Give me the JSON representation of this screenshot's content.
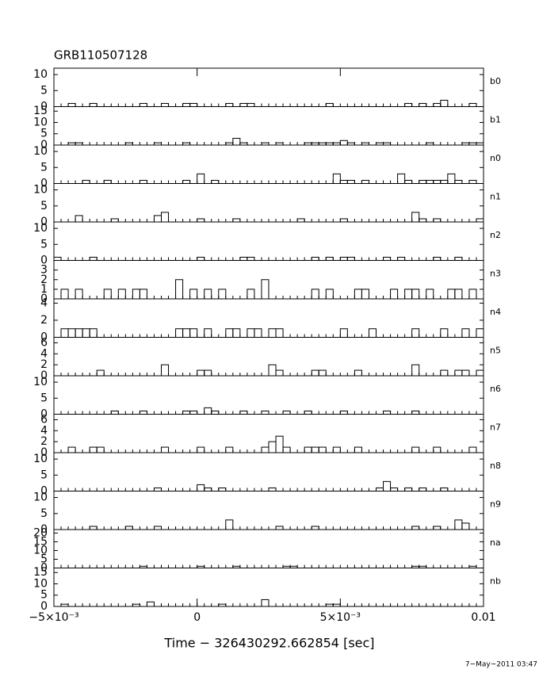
{
  "chart_data": {
    "type": "histogram",
    "title": "GRB110507128",
    "xlabel": "Time − 326430292.662854 [sec]",
    "footer": "7−May−2011 03:47",
    "xlim": [
      -0.005,
      0.01
    ],
    "xticks": [
      {
        "value": -0.005,
        "label": "−5×10⁻³"
      },
      0,
      {
        "value": 0.005,
        "label": "5×10⁻³"
      },
      0.01
    ],
    "bins": [
      -0.005,
      -0.00475,
      -0.0045,
      -0.00425,
      -0.004,
      -0.00375,
      -0.0035,
      -0.00325,
      -0.003,
      -0.00275,
      -0.0025,
      -0.00225,
      -0.002,
      -0.00175,
      -0.0015,
      -0.00125,
      -0.001,
      -0.00075,
      -0.0005,
      -0.00025,
      0,
      0.00025,
      0.0005,
      0.00075,
      0.001,
      0.00125,
      0.0015,
      0.00175,
      0.002,
      0.00225,
      0.0025,
      0.00275,
      0.003,
      0.00325,
      0.0035,
      0.00375,
      0.004,
      0.00425,
      0.0045,
      0.00475,
      0.005,
      0.00525,
      0.0055,
      0.00575,
      0.006,
      0.00625,
      0.0065,
      0.00675,
      0.007,
      0.00725,
      0.0075,
      0.00775,
      0.008,
      0.00825,
      0.0085,
      0.00875,
      0.009,
      0.00925,
      0.0095,
      0.00975,
      0.01
    ],
    "panels": [
      {
        "name": "b0",
        "ylim": [
          0,
          12
        ],
        "yticks": [
          0,
          5,
          10
        ],
        "values": [
          0,
          0,
          1,
          0,
          0,
          1,
          0,
          0,
          0,
          0,
          0,
          0,
          1,
          0,
          0,
          1,
          0,
          0,
          1,
          1,
          0,
          0,
          0,
          0,
          1,
          0,
          1,
          1,
          0,
          0,
          0,
          0,
          0,
          0,
          0,
          0,
          0,
          0,
          1,
          0,
          0,
          0,
          0,
          0,
          0,
          0,
          0,
          0,
          0,
          1,
          0,
          1,
          0,
          1,
          2,
          0,
          0,
          0,
          1,
          0
        ]
      },
      {
        "name": "b1",
        "ylim": [
          0,
          17
        ],
        "yticks": [
          0,
          5,
          10,
          15
        ],
        "values": [
          0,
          0,
          1,
          1,
          0,
          0,
          0,
          0,
          0,
          0,
          1,
          0,
          0,
          0,
          1,
          0,
          0,
          0,
          1,
          0,
          0,
          0,
          0,
          0,
          1,
          3,
          1,
          0,
          0,
          1,
          0,
          1,
          0,
          0,
          0,
          1,
          1,
          1,
          1,
          1,
          2,
          1,
          0,
          1,
          0,
          1,
          1,
          0,
          0,
          0,
          0,
          0,
          1,
          0,
          0,
          0,
          0,
          1,
          1,
          1
        ]
      },
      {
        "name": "n0",
        "ylim": [
          0,
          12
        ],
        "yticks": [
          0,
          5,
          10
        ],
        "values": [
          0,
          0,
          0,
          0,
          1,
          0,
          0,
          1,
          0,
          0,
          0,
          0,
          1,
          0,
          0,
          0,
          0,
          0,
          1,
          0,
          3,
          0,
          1,
          0,
          0,
          0,
          0,
          0,
          0,
          0,
          0,
          0,
          0,
          0,
          0,
          0,
          0,
          0,
          0,
          3,
          1,
          1,
          0,
          1,
          0,
          0,
          0,
          0,
          3,
          1,
          0,
          1,
          1,
          1,
          1,
          3,
          1,
          0,
          1,
          0
        ]
      },
      {
        "name": "n1",
        "ylim": [
          0,
          12
        ],
        "yticks": [
          0,
          5,
          10
        ],
        "values": [
          0,
          0,
          0,
          2,
          0,
          0,
          0,
          0,
          1,
          0,
          0,
          0,
          0,
          0,
          2,
          3,
          0,
          0,
          0,
          0,
          1,
          0,
          0,
          0,
          0,
          1,
          0,
          0,
          0,
          0,
          0,
          0,
          0,
          0,
          1,
          0,
          0,
          0,
          0,
          0,
          1,
          0,
          0,
          0,
          0,
          0,
          0,
          0,
          0,
          0,
          3,
          1,
          0,
          1,
          0,
          0,
          0,
          0,
          0,
          1
        ]
      },
      {
        "name": "n2",
        "ylim": [
          0,
          12
        ],
        "yticks": [
          0,
          5,
          10
        ],
        "values": [
          1,
          0,
          0,
          0,
          0,
          1,
          0,
          0,
          0,
          0,
          0,
          0,
          0,
          0,
          0,
          0,
          0,
          0,
          0,
          0,
          1,
          0,
          0,
          0,
          0,
          0,
          1,
          1,
          0,
          0,
          0,
          0,
          0,
          0,
          0,
          0,
          1,
          0,
          1,
          0,
          1,
          1,
          0,
          0,
          0,
          0,
          1,
          0,
          1,
          0,
          0,
          0,
          0,
          1,
          0,
          0,
          1,
          0,
          0,
          0
        ]
      },
      {
        "name": "n3",
        "ylim": [
          0,
          4
        ],
        "yticks": [
          0,
          1,
          2,
          3
        ],
        "values": [
          0,
          1,
          0,
          1,
          0,
          0,
          0,
          1,
          0,
          1,
          0,
          1,
          1,
          0,
          0,
          0,
          0,
          2,
          0,
          1,
          0,
          1,
          0,
          1,
          0,
          0,
          0,
          1,
          0,
          2,
          0,
          0,
          0,
          0,
          0,
          0,
          1,
          0,
          1,
          0,
          0,
          0,
          1,
          1,
          0,
          0,
          0,
          1,
          0,
          1,
          1,
          0,
          1,
          0,
          0,
          1,
          1,
          0,
          1,
          0
        ]
      },
      {
        "name": "n4",
        "ylim": [
          0,
          4.5
        ],
        "yticks": [
          0,
          2,
          4
        ],
        "values": [
          0,
          1,
          1,
          1,
          1,
          1,
          0,
          0,
          0,
          0,
          0,
          0,
          0,
          0,
          0,
          0,
          0,
          1,
          1,
          1,
          0,
          1,
          0,
          0,
          1,
          1,
          0,
          1,
          1,
          0,
          1,
          1,
          0,
          0,
          0,
          0,
          0,
          0,
          0,
          0,
          1,
          0,
          0,
          0,
          1,
          0,
          0,
          0,
          0,
          0,
          1,
          0,
          0,
          0,
          1,
          0,
          0,
          1,
          0,
          1
        ]
      },
      {
        "name": "n5",
        "ylim": [
          0,
          7
        ],
        "yticks": [
          0,
          2,
          4,
          6
        ],
        "values": [
          0,
          0,
          0,
          0,
          0,
          0,
          1,
          0,
          0,
          0,
          0,
          0,
          0,
          0,
          0,
          2,
          0,
          0,
          0,
          0,
          1,
          1,
          0,
          0,
          0,
          0,
          0,
          0,
          0,
          0,
          2,
          1,
          0,
          0,
          0,
          0,
          1,
          1,
          0,
          0,
          0,
          0,
          1,
          0,
          0,
          0,
          0,
          0,
          0,
          0,
          2,
          0,
          0,
          0,
          1,
          0,
          1,
          1,
          0,
          1
        ]
      },
      {
        "name": "n6",
        "ylim": [
          0,
          12
        ],
        "yticks": [
          0,
          5,
          10
        ],
        "values": [
          0,
          0,
          0,
          0,
          0,
          0,
          0,
          0,
          1,
          0,
          0,
          0,
          1,
          0,
          0,
          0,
          0,
          0,
          1,
          1,
          0,
          2,
          1,
          0,
          0,
          0,
          1,
          0,
          0,
          1,
          0,
          0,
          1,
          0,
          0,
          1,
          0,
          0,
          0,
          0,
          1,
          0,
          0,
          0,
          0,
          0,
          1,
          0,
          0,
          0,
          1,
          0,
          0,
          0,
          0,
          0,
          0,
          0,
          0,
          0
        ]
      },
      {
        "name": "n7",
        "ylim": [
          0,
          7
        ],
        "yticks": [
          0,
          2,
          4,
          6
        ],
        "values": [
          0,
          0,
          1,
          0,
          0,
          1,
          1,
          0,
          0,
          0,
          0,
          0,
          0,
          0,
          0,
          1,
          0,
          0,
          0,
          0,
          1,
          0,
          0,
          0,
          1,
          0,
          0,
          0,
          0,
          1,
          2,
          3,
          1,
          0,
          0,
          1,
          1,
          1,
          0,
          1,
          0,
          0,
          1,
          0,
          0,
          0,
          0,
          0,
          0,
          0,
          1,
          0,
          0,
          1,
          0,
          0,
          0,
          0,
          1,
          0
        ]
      },
      {
        "name": "n8",
        "ylim": [
          0,
          12
        ],
        "yticks": [
          0,
          5,
          10
        ],
        "values": [
          0,
          0,
          0,
          0,
          0,
          0,
          0,
          0,
          0,
          0,
          0,
          0,
          0,
          0,
          1,
          0,
          0,
          0,
          0,
          0,
          2,
          1,
          0,
          1,
          0,
          0,
          0,
          0,
          0,
          0,
          1,
          0,
          0,
          0,
          0,
          0,
          0,
          0,
          0,
          0,
          0,
          0,
          0,
          0,
          0,
          1,
          3,
          1,
          0,
          1,
          0,
          1,
          0,
          0,
          1,
          0,
          0,
          0,
          0,
          0
        ]
      },
      {
        "name": "n9",
        "ylim": [
          0,
          12
        ],
        "yticks": [
          0,
          5,
          10
        ],
        "values": [
          0,
          0,
          0,
          0,
          0,
          1,
          0,
          0,
          0,
          0,
          1,
          0,
          0,
          0,
          1,
          0,
          0,
          0,
          0,
          0,
          0,
          0,
          0,
          0,
          3,
          0,
          0,
          0,
          0,
          0,
          0,
          1,
          0,
          0,
          0,
          0,
          1,
          0,
          0,
          0,
          0,
          0,
          0,
          0,
          0,
          0,
          0,
          0,
          0,
          0,
          1,
          0,
          0,
          1,
          0,
          0,
          3,
          2,
          0,
          0
        ]
      },
      {
        "name": "na",
        "ylim": [
          0,
          22
        ],
        "yticks": [
          0,
          5,
          10,
          15,
          20
        ],
        "values": [
          0,
          0,
          0,
          0,
          0,
          0,
          0,
          0,
          0,
          0,
          0,
          0,
          1,
          0,
          0,
          0,
          0,
          0,
          0,
          0,
          1,
          0,
          0,
          0,
          0,
          1,
          0,
          0,
          0,
          0,
          0,
          0,
          1,
          1,
          0,
          0,
          0,
          0,
          0,
          0,
          0,
          0,
          0,
          0,
          0,
          0,
          0,
          0,
          0,
          0,
          1,
          1,
          0,
          0,
          0,
          0,
          0,
          0,
          1,
          0
        ]
      },
      {
        "name": "nb",
        "ylim": [
          0,
          17
        ],
        "yticks": [
          0,
          5,
          10,
          15
        ],
        "values": [
          0,
          1,
          0,
          0,
          0,
          0,
          0,
          0,
          0,
          0,
          0,
          1,
          0,
          2,
          0,
          0,
          0,
          0,
          0,
          0,
          0,
          0,
          0,
          1,
          0,
          0,
          0,
          0,
          0,
          3,
          0,
          0,
          0,
          0,
          0,
          0,
          0,
          0,
          1,
          1,
          0,
          0,
          0,
          0,
          0,
          0,
          0,
          0,
          0,
          0,
          0,
          0,
          0,
          0,
          0,
          0,
          0,
          0,
          0,
          0
        ]
      }
    ]
  }
}
